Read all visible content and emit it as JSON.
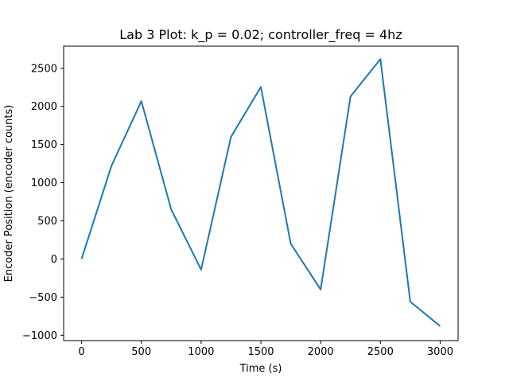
{
  "chart_data": {
    "type": "line",
    "title": "Lab 3 Plot: k_p = 0.02; controller_freq = 4hz",
    "xlabel": "Time (s)",
    "ylabel": "Encoder Position (encoder counts)",
    "xlim": [
      -150,
      3150
    ],
    "ylim": [
      -1070,
      2790
    ],
    "xticks": [
      0,
      500,
      1000,
      1500,
      2000,
      2500,
      3000
    ],
    "yticks": [
      -1000,
      -500,
      0,
      500,
      1000,
      1500,
      2000,
      2500
    ],
    "grid": false,
    "series": [
      {
        "color": "#1f77b4",
        "x": [
          0,
          250,
          500,
          750,
          1000,
          1250,
          1500,
          1750,
          2000,
          2250,
          2500,
          2750,
          3000
        ],
        "y": [
          0,
          1220,
          2070,
          650,
          -140,
          1600,
          2255,
          200,
          -400,
          2130,
          2620,
          -560,
          -880
        ]
      }
    ]
  }
}
